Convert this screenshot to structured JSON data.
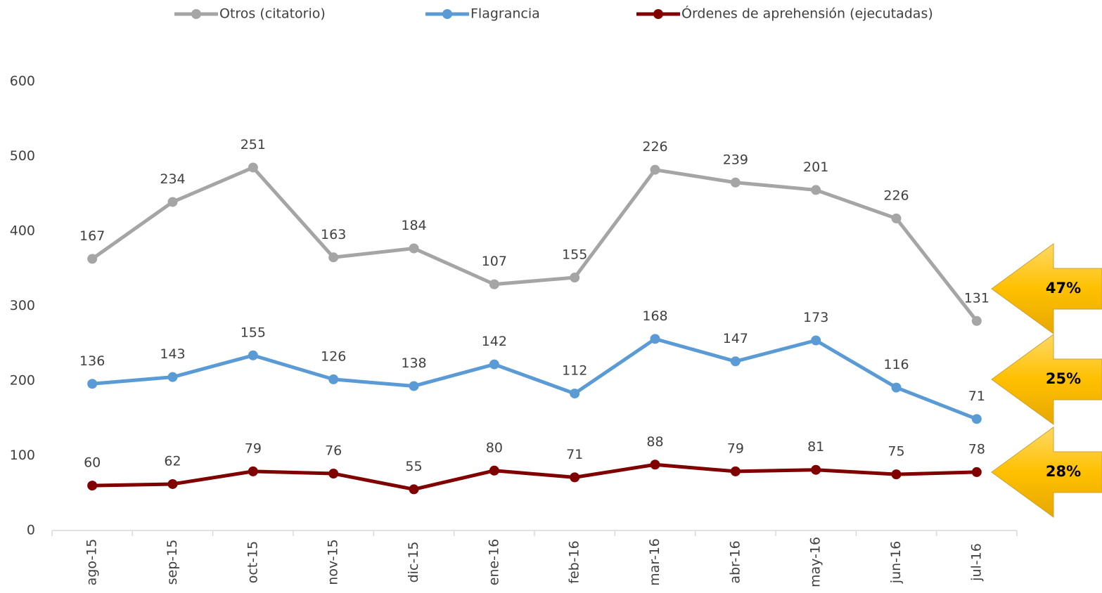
{
  "chart_data": {
    "type": "line",
    "stacked": true,
    "categories": [
      "ago-15",
      "sep-15",
      "oct-15",
      "nov-15",
      "dic-15",
      "ene-16",
      "feb-16",
      "mar-16",
      "abr-16",
      "may-16",
      "jun-16",
      "jul-16"
    ],
    "series": [
      {
        "name": "Otros (citatorio)",
        "color": "#a5a5a5",
        "values": [
          167,
          234,
          251,
          163,
          184,
          107,
          155,
          226,
          239,
          201,
          226,
          131
        ]
      },
      {
        "name": "Flagrancia",
        "color": "#5b9bd5",
        "values": [
          136,
          143,
          155,
          126,
          138,
          142,
          112,
          168,
          147,
          173,
          116,
          71
        ]
      },
      {
        "name": "Órdenes de aprehensión (ejecutadas)",
        "color": "#800000",
        "values": [
          60,
          62,
          79,
          76,
          55,
          80,
          71,
          88,
          79,
          81,
          75,
          78
        ]
      }
    ],
    "ylim": [
      0,
      600
    ],
    "yticks": [
      0,
      100,
      200,
      300,
      400,
      500,
      600
    ],
    "legend": "top",
    "annotations": [
      "47%",
      "25%",
      "28%"
    ]
  }
}
